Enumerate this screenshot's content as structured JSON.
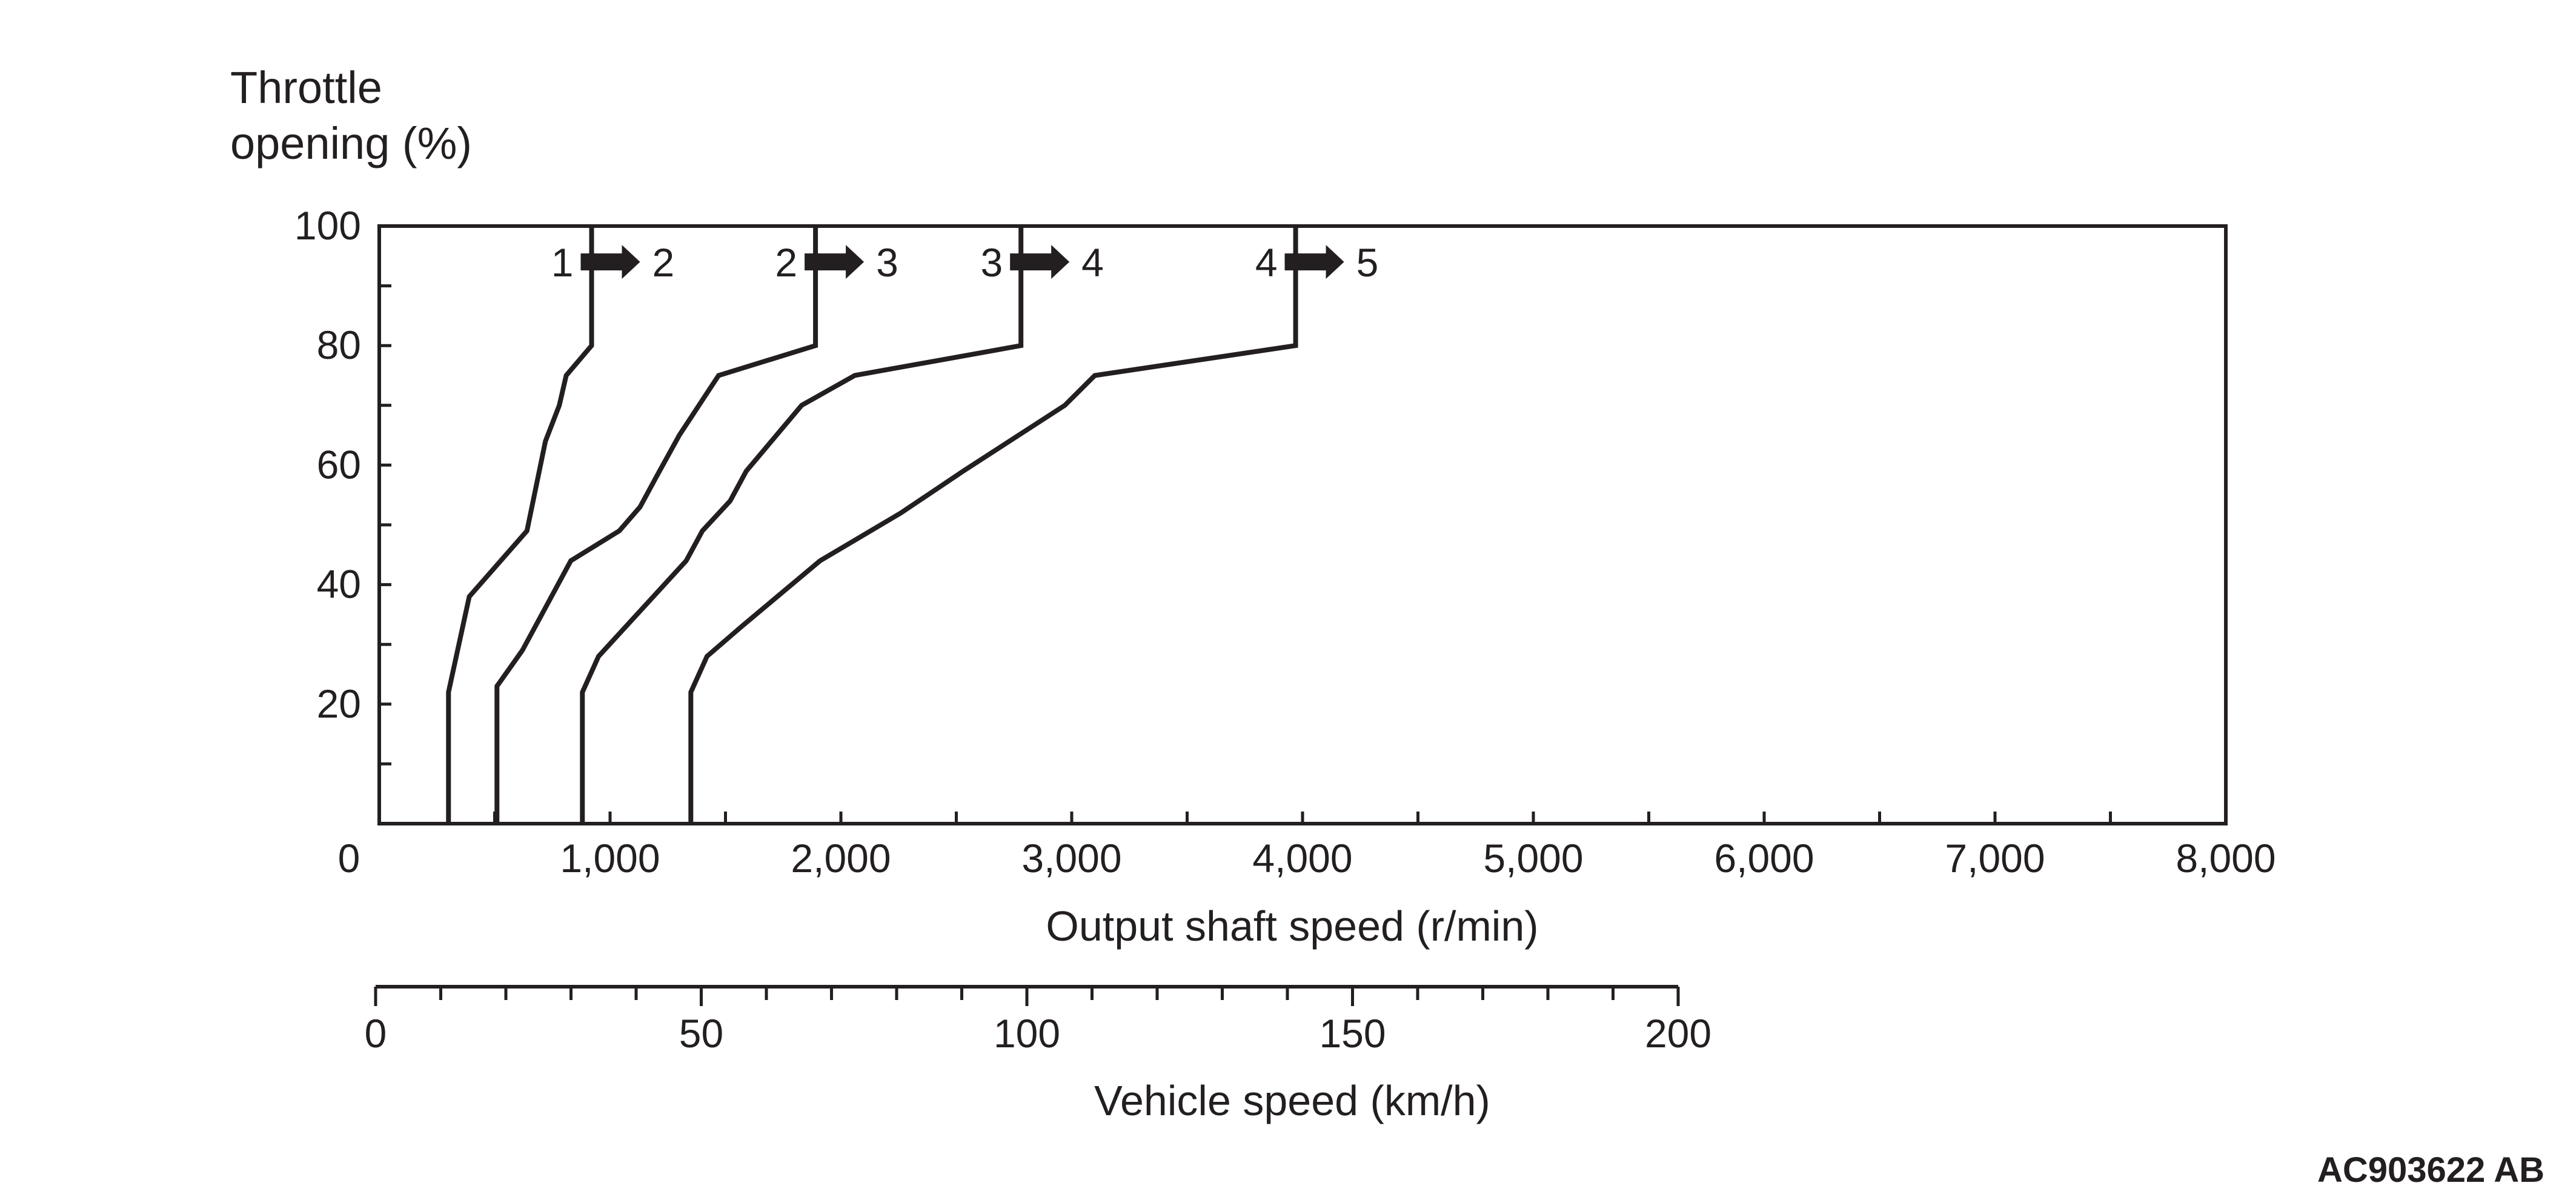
{
  "chart_data": {
    "type": "line",
    "title": "",
    "ylabel_lines": [
      "Throttle",
      "opening (%)"
    ],
    "xlabel": "Output shaft speed (r/min)",
    "xlim": [
      0,
      8000
    ],
    "ylim": [
      0,
      100
    ],
    "x_ticks": [
      {
        "value": 0,
        "label": "0"
      },
      {
        "value": 1000,
        "label": "1,000"
      },
      {
        "value": 2000,
        "label": "2,000"
      },
      {
        "value": 3000,
        "label": "3,000"
      },
      {
        "value": 4000,
        "label": "4,000"
      },
      {
        "value": 5000,
        "label": "5,000"
      },
      {
        "value": 6000,
        "label": "6,000"
      },
      {
        "value": 7000,
        "label": "7,000"
      },
      {
        "value": 8000,
        "label": "8,000"
      }
    ],
    "x_minor_step": 500,
    "y_ticks": [
      {
        "value": 20,
        "label": "20"
      },
      {
        "value": 40,
        "label": "40"
      },
      {
        "value": 60,
        "label": "60"
      },
      {
        "value": 80,
        "label": "80"
      },
      {
        "value": 100,
        "label": "100"
      }
    ],
    "y_minor_step": 10,
    "secondary_axis": {
      "label": "Vehicle speed (km/h)",
      "range": [
        0,
        200
      ],
      "ticks": [
        {
          "value": 0,
          "label": "0"
        },
        {
          "value": 50,
          "label": "50"
        },
        {
          "value": 100,
          "label": "100"
        },
        {
          "value": 150,
          "label": "150"
        },
        {
          "value": 200,
          "label": "200"
        }
      ],
      "minor_step": 10
    },
    "series": [
      {
        "name": "1-2 upshift",
        "from_gear": "1",
        "to_gear": "2",
        "points": [
          [
            300,
            0
          ],
          [
            300,
            22
          ],
          [
            390,
            38
          ],
          [
            640,
            49
          ],
          [
            720,
            64
          ],
          [
            780,
            70
          ],
          [
            810,
            75
          ],
          [
            920,
            80
          ],
          [
            920,
            100
          ]
        ]
      },
      {
        "name": "2-3 upshift",
        "from_gear": "2",
        "to_gear": "3",
        "points": [
          [
            510,
            0
          ],
          [
            510,
            23
          ],
          [
            620,
            29
          ],
          [
            690,
            34
          ],
          [
            830,
            44
          ],
          [
            1040,
            49
          ],
          [
            1130,
            53
          ],
          [
            1200,
            58
          ],
          [
            1300,
            65
          ],
          [
            1470,
            75
          ],
          [
            1890,
            80
          ],
          [
            1890,
            100
          ]
        ]
      },
      {
        "name": "3-4 upshift",
        "from_gear": "3",
        "to_gear": "4",
        "points": [
          [
            880,
            0
          ],
          [
            880,
            22
          ],
          [
            950,
            28
          ],
          [
            1330,
            44
          ],
          [
            1400,
            49
          ],
          [
            1520,
            54
          ],
          [
            1590,
            59
          ],
          [
            1830,
            70
          ],
          [
            2060,
            75
          ],
          [
            2780,
            80
          ],
          [
            2780,
            100
          ]
        ]
      },
      {
        "name": "4-5 upshift",
        "from_gear": "4",
        "to_gear": "5",
        "points": [
          [
            1350,
            0
          ],
          [
            1350,
            22
          ],
          [
            1420,
            28
          ],
          [
            1570,
            33
          ],
          [
            1910,
            44
          ],
          [
            2260,
            52
          ],
          [
            2530,
            59
          ],
          [
            2970,
            70
          ],
          [
            3100,
            75
          ],
          [
            3970,
            80
          ],
          [
            3970,
            100
          ]
        ]
      }
    ],
    "shift_marker_y": 94
  },
  "figure_code": "AC903622 AB"
}
